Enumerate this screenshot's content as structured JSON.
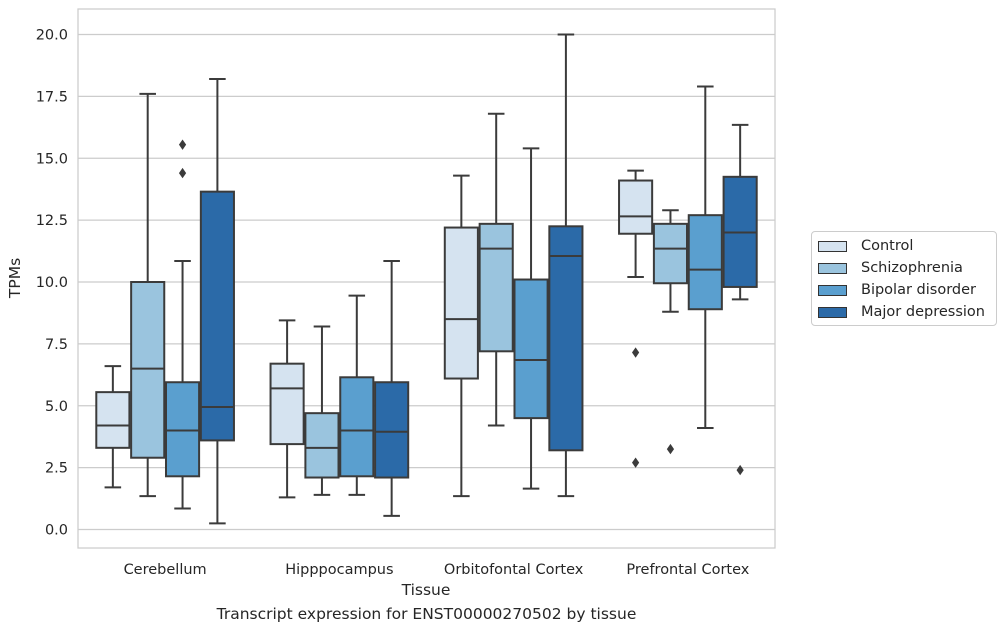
{
  "chart_data": {
    "type": "box",
    "title": "",
    "xlabel": "Tissue",
    "ylabel": "TPMs",
    "caption": "Transcript expression for ENST00000270502 by tissue",
    "ylim": [
      -0.6,
      21.0
    ],
    "yticks": [
      0.0,
      2.5,
      5.0,
      7.5,
      10.0,
      12.5,
      15.0,
      17.5,
      20.0
    ],
    "ytick_labels": [
      "0.0",
      "2.5",
      "5.0",
      "7.5",
      "10.0",
      "12.5",
      "15.0",
      "17.5",
      "20.0"
    ],
    "categories": [
      "Cerebellum",
      "Hipppocampus",
      "Orbitofontal Cortex",
      "Prefrontal Cortex"
    ],
    "grid": true,
    "legend_position": "right",
    "series": [
      {
        "name": "Control",
        "color": "#d5e3f0",
        "boxes": [
          {
            "whislo": 1.7,
            "q1": 3.3,
            "med": 4.2,
            "q3": 5.55,
            "whishi": 6.6,
            "fliers": []
          },
          {
            "whislo": 1.3,
            "q1": 3.45,
            "med": 5.7,
            "q3": 6.7,
            "whishi": 8.45,
            "fliers": []
          },
          {
            "whislo": 1.35,
            "q1": 6.1,
            "med": 8.5,
            "q3": 12.2,
            "whishi": 14.3,
            "fliers": []
          },
          {
            "whislo": 10.2,
            "q1": 11.95,
            "med": 12.65,
            "q3": 14.1,
            "whishi": 14.5,
            "fliers": [
              7.15,
              2.7
            ]
          }
        ]
      },
      {
        "name": "Schizophrenia",
        "color": "#9ac4de",
        "boxes": [
          {
            "whislo": 1.35,
            "q1": 2.9,
            "med": 6.5,
            "q3": 10.0,
            "whishi": 17.6,
            "fliers": []
          },
          {
            "whislo": 1.4,
            "q1": 2.1,
            "med": 3.3,
            "q3": 4.7,
            "whishi": 8.2,
            "fliers": []
          },
          {
            "whislo": 4.2,
            "q1": 7.2,
            "med": 11.35,
            "q3": 12.35,
            "whishi": 16.8,
            "fliers": []
          },
          {
            "whislo": 8.8,
            "q1": 9.95,
            "med": 11.35,
            "q3": 12.35,
            "whishi": 12.9,
            "fliers": [
              3.25
            ]
          }
        ]
      },
      {
        "name": "Bipolar disorder",
        "color": "#5a9fcf",
        "boxes": [
          {
            "whislo": 0.85,
            "q1": 2.15,
            "med": 4.0,
            "q3": 5.95,
            "whishi": 10.85,
            "fliers": [
              14.4,
              15.55
            ]
          },
          {
            "whislo": 1.4,
            "q1": 2.15,
            "med": 4.0,
            "q3": 6.15,
            "whishi": 9.45,
            "fliers": []
          },
          {
            "whislo": 1.65,
            "q1": 4.5,
            "med": 6.85,
            "q3": 10.1,
            "whishi": 15.4,
            "fliers": []
          },
          {
            "whislo": 4.1,
            "q1": 8.9,
            "med": 10.5,
            "q3": 12.7,
            "whishi": 17.9,
            "fliers": []
          }
        ]
      },
      {
        "name": "Major depression",
        "color": "#2b6aa8",
        "boxes": [
          {
            "whislo": 0.25,
            "q1": 3.6,
            "med": 4.95,
            "q3": 13.65,
            "whishi": 18.2,
            "fliers": []
          },
          {
            "whislo": 0.55,
            "q1": 2.1,
            "med": 3.95,
            "q3": 5.95,
            "whishi": 10.85,
            "fliers": []
          },
          {
            "whislo": 1.35,
            "q1": 3.2,
            "med": 11.05,
            "q3": 12.25,
            "whishi": 20.0,
            "fliers": []
          },
          {
            "whislo": 9.3,
            "q1": 9.8,
            "med": 12.0,
            "q3": 14.25,
            "whishi": 16.35,
            "fliers": [
              2.4
            ]
          }
        ]
      }
    ]
  }
}
